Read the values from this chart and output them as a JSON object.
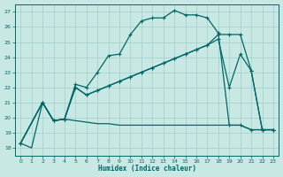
{
  "xlabel": "Humidex (Indice chaleur)",
  "bg_color": "#c8e8e4",
  "grid_color": "#a0ccc8",
  "line_color": "#006666",
  "xlim": [
    -0.5,
    23.5
  ],
  "ylim": [
    17.5,
    27.5
  ],
  "yticks": [
    18,
    19,
    20,
    21,
    22,
    23,
    24,
    25,
    26,
    27
  ],
  "xticks": [
    0,
    1,
    2,
    3,
    4,
    5,
    6,
    7,
    8,
    9,
    10,
    11,
    12,
    13,
    14,
    15,
    16,
    17,
    18,
    19,
    20,
    21,
    22,
    23
  ],
  "curve1_x": [
    0,
    1,
    2,
    3,
    4,
    5,
    6,
    7,
    8,
    9,
    10,
    11,
    12,
    13,
    14,
    15,
    16,
    17,
    18,
    19,
    20,
    21,
    22,
    23
  ],
  "curve1_y": [
    18.3,
    18.0,
    21.0,
    19.8,
    19.9,
    19.8,
    19.7,
    19.6,
    19.6,
    19.5,
    19.5,
    19.5,
    19.5,
    19.5,
    19.5,
    19.5,
    19.5,
    19.5,
    19.5,
    19.5,
    19.5,
    19.2,
    19.2,
    19.2
  ],
  "curve2_x": [
    0,
    2,
    3,
    4,
    5,
    6,
    7,
    8,
    9,
    10,
    11,
    12,
    13,
    14,
    15,
    16,
    17,
    18,
    19,
    20,
    21,
    22,
    23
  ],
  "curve2_y": [
    18.3,
    21.0,
    19.8,
    19.9,
    22.2,
    22.0,
    23.0,
    24.1,
    24.2,
    25.5,
    26.4,
    26.6,
    26.6,
    27.1,
    26.8,
    26.8,
    26.6,
    25.6,
    19.5,
    19.5,
    19.2,
    19.2,
    19.2
  ],
  "curve3_x": [
    0,
    2,
    3,
    4,
    5,
    6,
    7,
    8,
    9,
    10,
    11,
    12,
    13,
    14,
    15,
    16,
    17,
    18,
    19,
    20,
    21,
    22,
    23
  ],
  "curve3_y": [
    18.3,
    21.0,
    19.8,
    19.9,
    22.0,
    21.5,
    21.8,
    22.1,
    22.4,
    22.7,
    23.0,
    23.3,
    23.6,
    23.9,
    24.2,
    24.5,
    24.8,
    25.5,
    25.5,
    25.5,
    23.1,
    19.2,
    19.2
  ],
  "curve4_x": [
    0,
    2,
    3,
    4,
    5,
    6,
    7,
    8,
    9,
    10,
    11,
    12,
    13,
    14,
    15,
    16,
    17,
    18,
    19,
    20,
    21,
    22,
    23
  ],
  "curve4_y": [
    18.3,
    21.0,
    19.8,
    19.9,
    22.0,
    21.5,
    21.8,
    22.1,
    22.4,
    22.7,
    23.0,
    23.3,
    23.6,
    23.9,
    24.2,
    24.5,
    24.8,
    25.2,
    22.0,
    24.2,
    23.1,
    19.2,
    19.2
  ]
}
